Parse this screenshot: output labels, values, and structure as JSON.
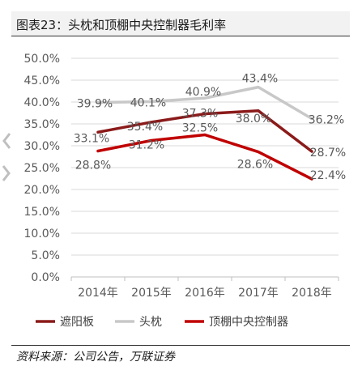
{
  "figure": {
    "title": "图表23：头枕和顶棚中央控制器毛利率",
    "source": "资料来源：公司公告，万联证券"
  },
  "colors": {
    "sun_visor": "#8b1a1a",
    "headrest": "#c8c8c8",
    "ceiling_controller": "#c00000",
    "axis_text": "#595959",
    "gridline": "#d9d9d9",
    "title_bg": "#f2f2f2"
  },
  "icons": [
    "chevron-left-icon",
    "chevron-right-icon"
  ],
  "chart_data": {
    "type": "line",
    "title": "图表23：头枕和顶棚中央控制器毛利率",
    "xlabel": "",
    "ylabel": "",
    "categories": [
      "2014年",
      "2015年",
      "2016年",
      "2017年",
      "2018年"
    ],
    "ylim": [
      0,
      50
    ],
    "yticks": [
      "0.0%",
      "5.0%",
      "10.0%",
      "15.0%",
      "20.0%",
      "25.0%",
      "30.0%",
      "35.0%",
      "40.0%",
      "45.0%",
      "50.0%"
    ],
    "grid": true,
    "legend_position": "bottom",
    "series": [
      {
        "name": "遮阳板",
        "key": "sun_visor",
        "values": [
          33.1,
          35.4,
          37.3,
          38.0,
          28.7
        ],
        "labels": [
          "33.1%",
          "35.4%",
          "37.3%",
          "38.0%",
          "28.7%"
        ]
      },
      {
        "name": "头枕",
        "key": "headrest",
        "values": [
          39.9,
          40.1,
          40.9,
          43.4,
          36.2
        ],
        "labels": [
          "39.9%",
          "40.1%",
          "40.9%",
          "43.4%",
          "36.2%"
        ]
      },
      {
        "name": "顶棚中央控制器",
        "key": "ceiling_controller",
        "values": [
          28.8,
          31.2,
          32.5,
          28.6,
          22.4
        ],
        "labels": [
          "28.8%",
          "31.2%",
          "32.5%",
          "28.6%",
          "22.4%"
        ]
      }
    ]
  }
}
